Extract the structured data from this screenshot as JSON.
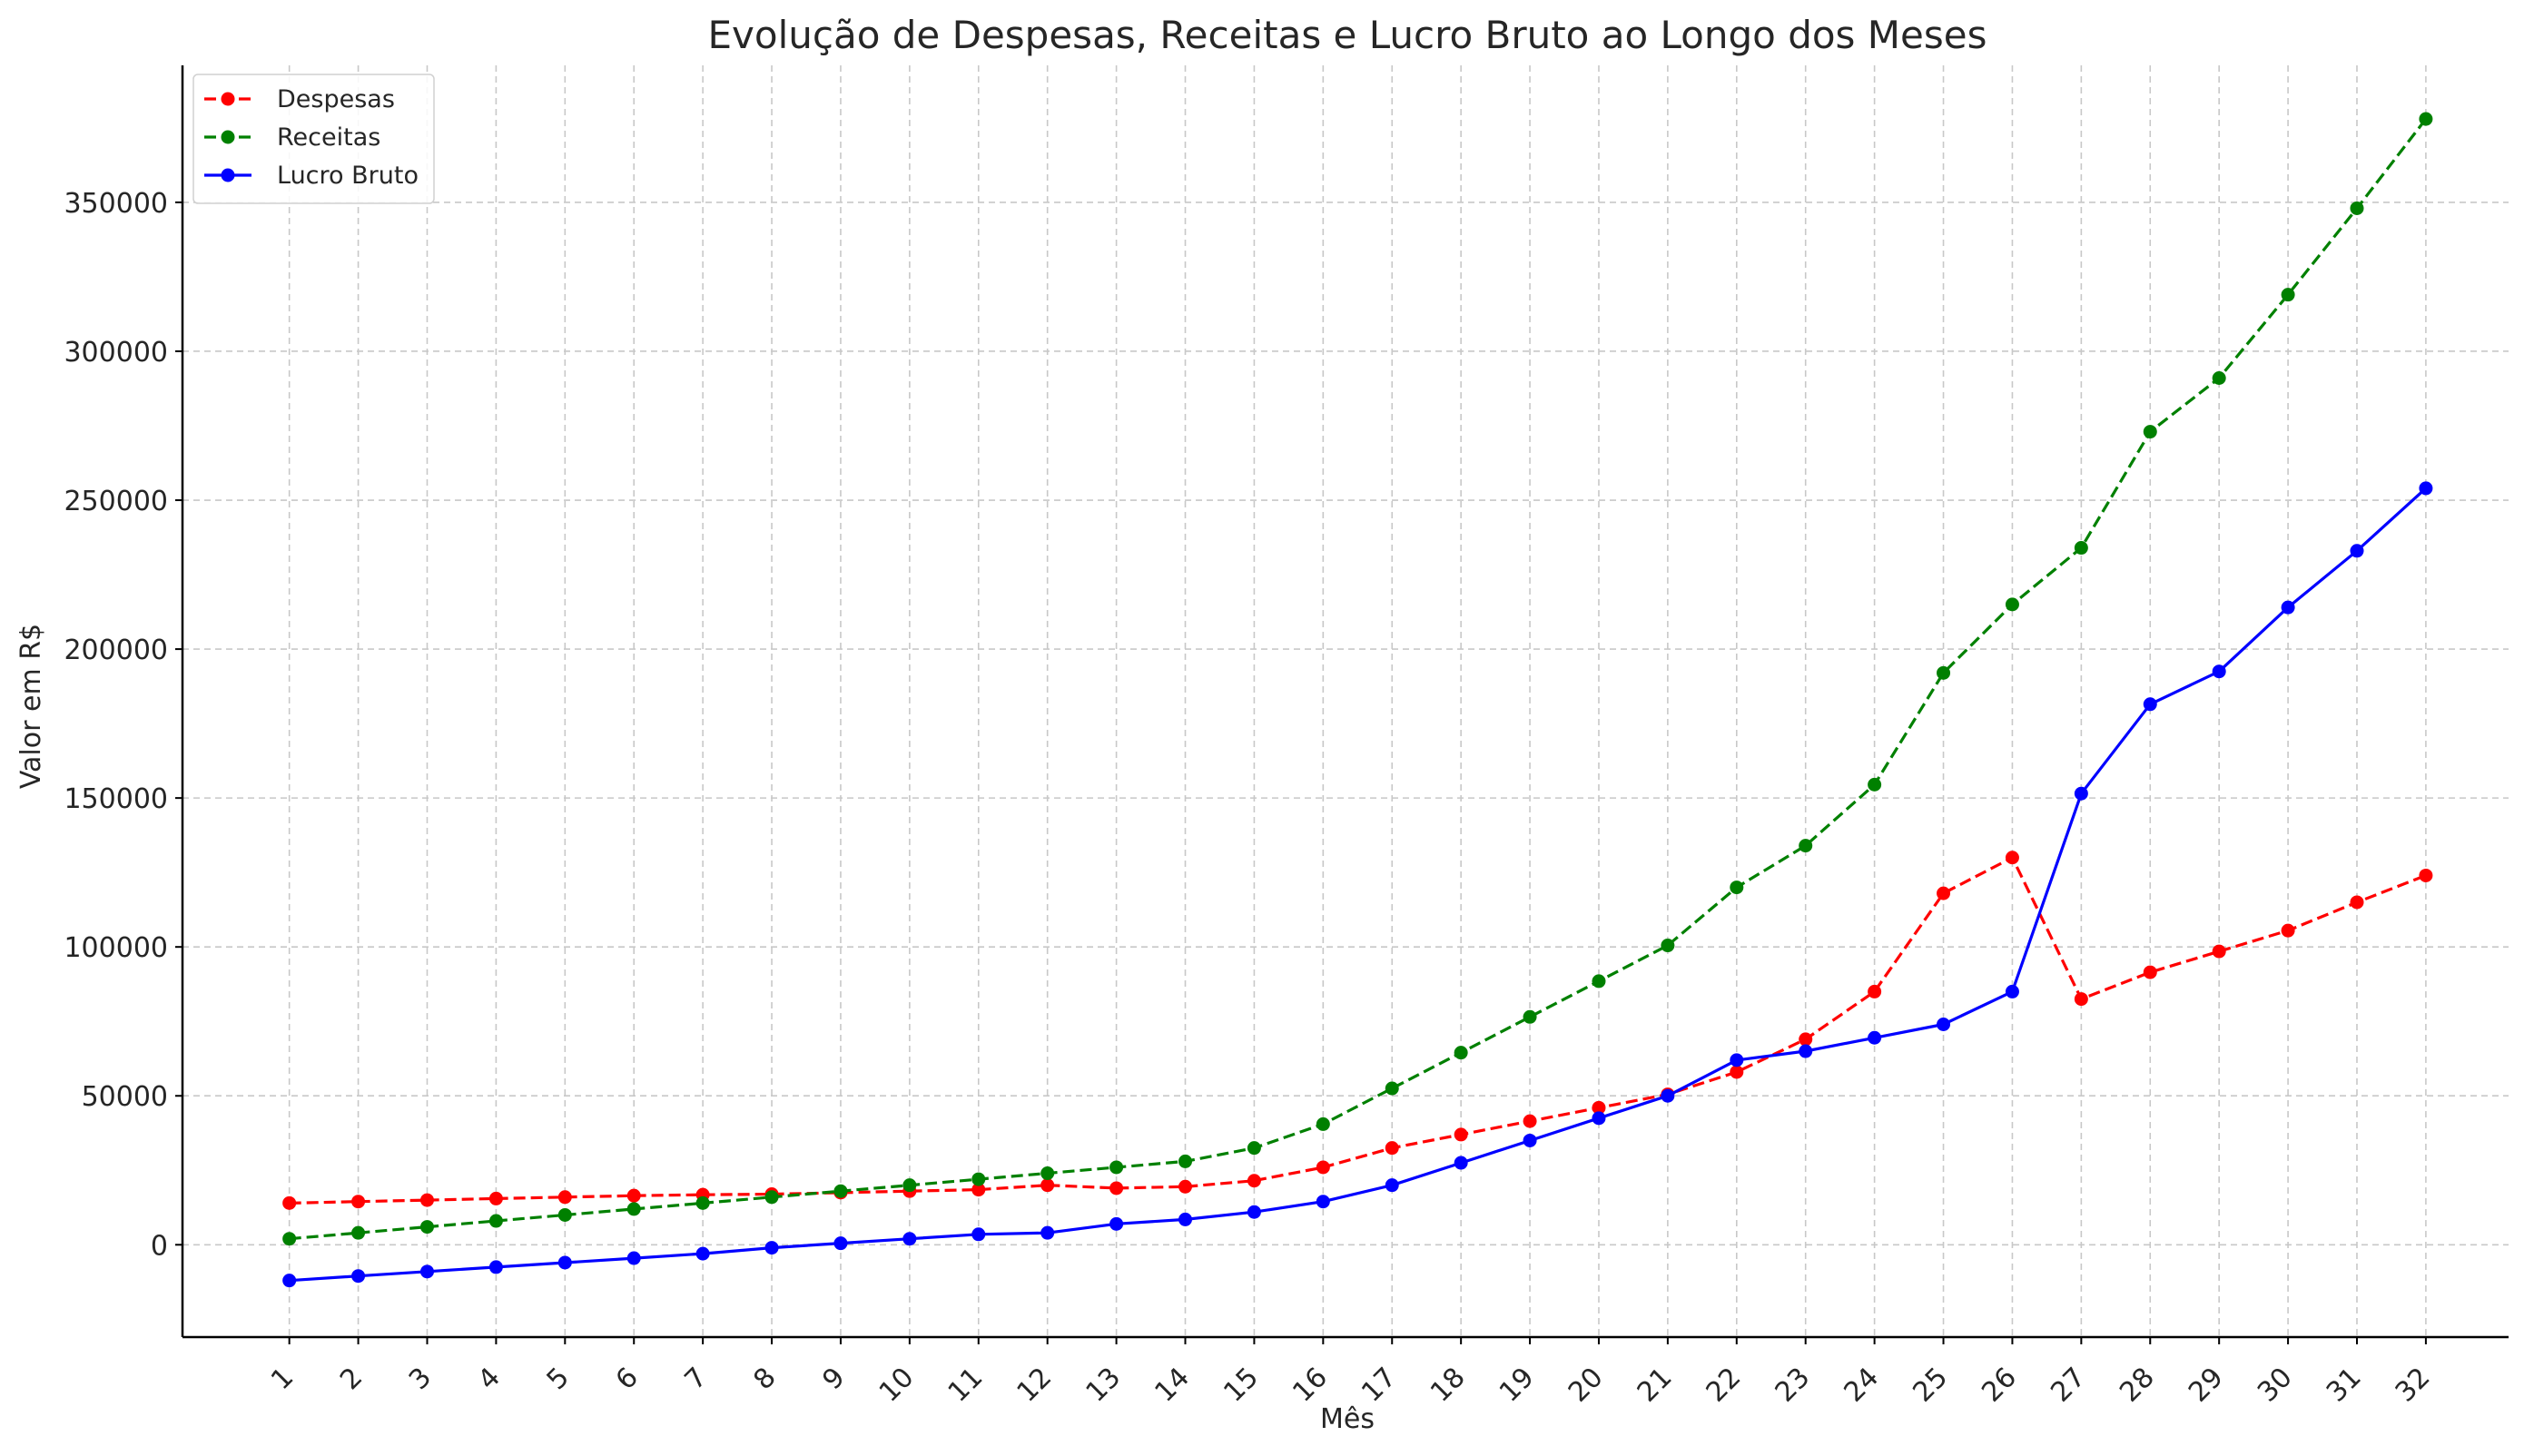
{
  "chart_data": {
    "type": "line",
    "title": "Evolução de Despesas, Receitas e Lucro Bruto ao Longo dos Meses",
    "xlabel": "Mês",
    "ylabel": "Valor em R$",
    "x": [
      1,
      2,
      3,
      4,
      5,
      6,
      7,
      8,
      9,
      10,
      11,
      12,
      13,
      14,
      15,
      16,
      17,
      18,
      19,
      20,
      21,
      22,
      23,
      24,
      25,
      26,
      27,
      28,
      29,
      30,
      31,
      32
    ],
    "x_tick_labels": [
      "1",
      "2",
      "3",
      "4",
      "5",
      "6",
      "7",
      "8",
      "9",
      "10",
      "11",
      "12",
      "13",
      "14",
      "15",
      "16",
      "17",
      "18",
      "19",
      "20",
      "21",
      "22",
      "23",
      "24",
      "25",
      "26",
      "27",
      "28",
      "29",
      "30",
      "31",
      "32"
    ],
    "y_ticks": [
      0,
      50000,
      100000,
      150000,
      200000,
      250000,
      300000,
      350000
    ],
    "y_tick_labels": [
      "0",
      "50000",
      "100000",
      "150000",
      "200000",
      "250000",
      "300000",
      "350000"
    ],
    "xlim": [
      -0.55,
      33.2
    ],
    "ylim": [
      -31000,
      396000
    ],
    "grid": true,
    "legend_position": "top-left",
    "series": [
      {
        "name": "Despesas",
        "color": "#ff0000",
        "style": "dashed",
        "marker": "circle",
        "values": [
          14000,
          14500,
          15000,
          15500,
          16000,
          16500,
          16800,
          17000,
          17500,
          18000,
          18500,
          20000,
          19000,
          19500,
          21500,
          26000,
          32500,
          37000,
          41500,
          46000,
          50500,
          58000,
          69000,
          85000,
          118000,
          130000,
          82500,
          91500,
          98500,
          105500,
          115000,
          124000
        ]
      },
      {
        "name": "Receitas",
        "color": "#008000",
        "style": "dashed",
        "marker": "circle",
        "values": [
          2000,
          4000,
          6000,
          8000,
          10000,
          12000,
          14000,
          16000,
          18000,
          20000,
          22000,
          24000,
          26000,
          28000,
          32500,
          40500,
          52500,
          64500,
          76500,
          88500,
          100500,
          120000,
          134000,
          154500,
          192000,
          215000,
          234000,
          273000,
          291000,
          319000,
          348000,
          378000
        ]
      },
      {
        "name": "Lucro Bruto",
        "color": "#0000ff",
        "style": "solid",
        "marker": "circle",
        "values": [
          -12000,
          -10500,
          -9000,
          -7500,
          -6000,
          -4500,
          -3000,
          -1000,
          500,
          2000,
          3500,
          4000,
          7000,
          8500,
          11000,
          14500,
          20000,
          27500,
          35000,
          42500,
          50000,
          62000,
          65000,
          69500,
          74000,
          85000,
          151500,
          181500,
          192500,
          214000,
          233000,
          254000
        ]
      }
    ]
  }
}
